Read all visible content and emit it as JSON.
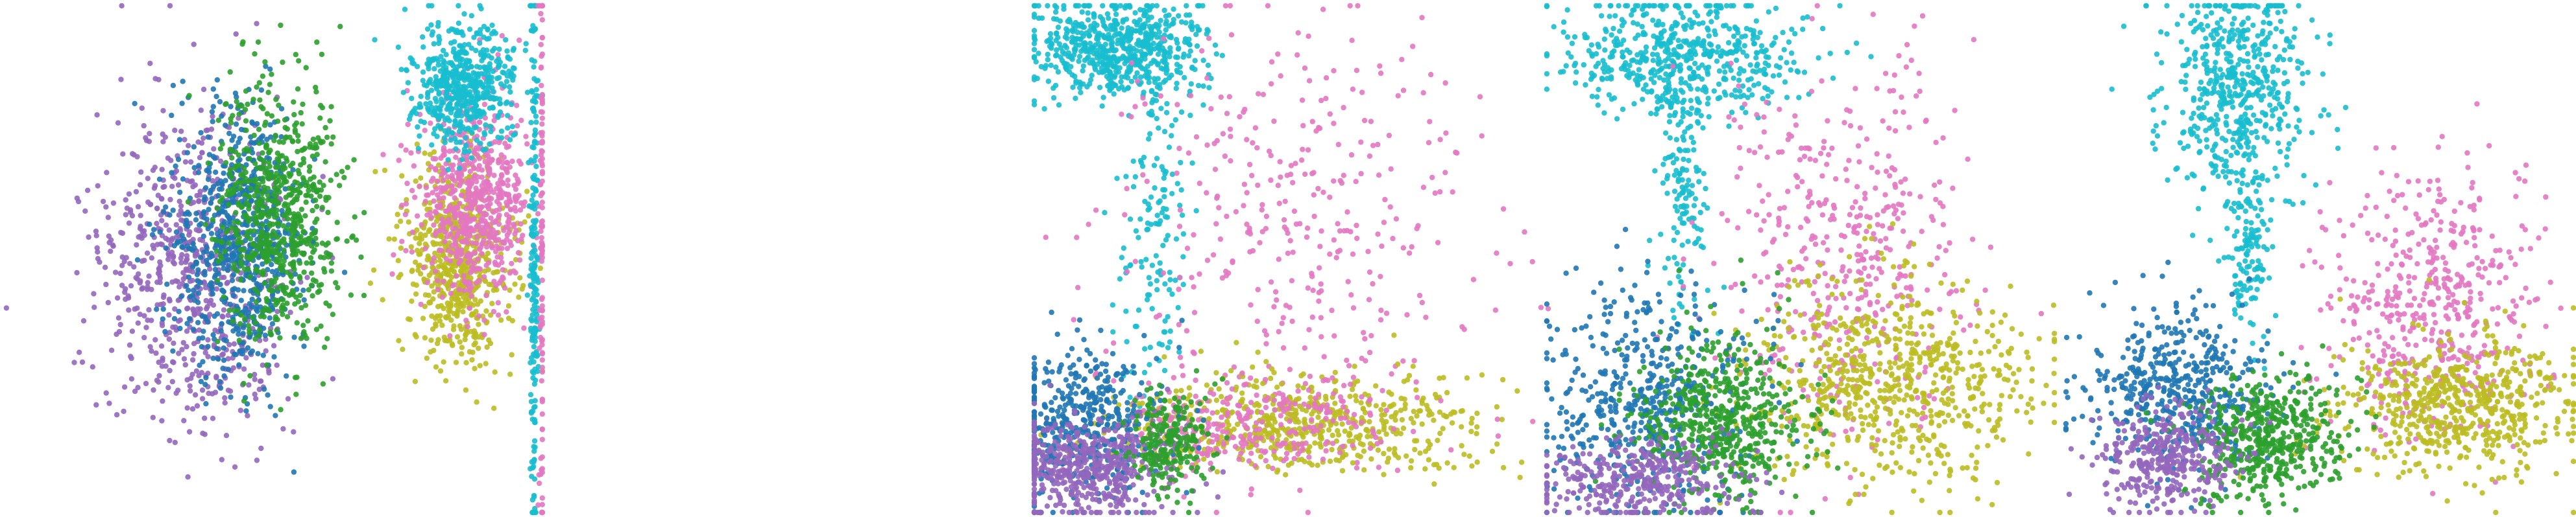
{
  "figure": {
    "palette": {
      "blue": "#1f77b4",
      "green": "#2ca02c",
      "purple": "#9467bd",
      "pink": "#e377c2",
      "olive": "#bcbd22",
      "cyan": "#17becf"
    }
  },
  "chart_data": [
    {
      "type": "scatter",
      "panel": "panel-1",
      "grid": false,
      "axes_visible": false,
      "legend": "none",
      "clusters": [
        {
          "color": "purple",
          "count": 700,
          "mean": [
            0.355,
            0.52
          ],
          "std": [
            0.085,
            0.16
          ]
        },
        {
          "color": "blue",
          "count": 700,
          "mean": [
            0.44,
            0.47
          ],
          "std": [
            0.06,
            0.13
          ]
        },
        {
          "color": "green",
          "count": 700,
          "mean": [
            0.51,
            0.42
          ],
          "std": [
            0.055,
            0.13
          ]
        },
        {
          "color": "olive",
          "count": 650,
          "mean": [
            0.84,
            0.5
          ],
          "std": [
            0.05,
            0.1
          ]
        },
        {
          "color": "pink",
          "count": 650,
          "mean": [
            0.87,
            0.38
          ],
          "std": [
            0.05,
            0.09
          ]
        },
        {
          "color": "cyan",
          "count": 550,
          "mean": [
            0.85,
            0.16
          ],
          "std": [
            0.045,
            0.06
          ]
        },
        {
          "color": "cyan",
          "count": 200,
          "mean": [
            0.98,
            0.5
          ],
          "std": [
            0.004,
            0.28
          ]
        },
        {
          "color": "pink",
          "count": 120,
          "mean": [
            0.995,
            0.5
          ],
          "std": [
            0.003,
            0.3
          ]
        }
      ]
    },
    {
      "type": "scatter",
      "panel": "panel-2",
      "grid": false,
      "axes_visible": false,
      "legend": "none",
      "clusters": [
        {
          "color": "cyan",
          "count": 650,
          "mean": [
            0.17,
            0.09
          ],
          "std": [
            0.08,
            0.05
          ]
        },
        {
          "color": "cyan",
          "count": 140,
          "mean": [
            0.24,
            0.45
          ],
          "std": [
            0.035,
            0.18
          ]
        },
        {
          "color": "pink",
          "count": 350,
          "mean": [
            0.5,
            0.45
          ],
          "std": [
            0.17,
            0.2
          ]
        },
        {
          "color": "olive",
          "count": 600,
          "mean": [
            0.52,
            0.82
          ],
          "std": [
            0.18,
            0.05
          ]
        },
        {
          "color": "pink",
          "count": 300,
          "mean": [
            0.42,
            0.82
          ],
          "std": [
            0.15,
            0.05
          ]
        },
        {
          "color": "blue",
          "count": 450,
          "mean": [
            0.1,
            0.82
          ],
          "std": [
            0.07,
            0.07
          ]
        },
        {
          "color": "purple",
          "count": 500,
          "mean": [
            0.11,
            0.91
          ],
          "std": [
            0.08,
            0.05
          ]
        },
        {
          "color": "green",
          "count": 220,
          "mean": [
            0.27,
            0.86
          ],
          "std": [
            0.04,
            0.05
          ]
        }
      ]
    },
    {
      "type": "scatter",
      "panel": "panel-3",
      "grid": false,
      "axes_visible": false,
      "legend": "none",
      "clusters": [
        {
          "color": "cyan",
          "count": 550,
          "mean": [
            0.27,
            0.1
          ],
          "std": [
            0.12,
            0.06
          ]
        },
        {
          "color": "cyan",
          "count": 150,
          "mean": [
            0.27,
            0.35
          ],
          "std": [
            0.025,
            0.12
          ]
        },
        {
          "color": "pink",
          "count": 450,
          "mean": [
            0.6,
            0.47
          ],
          "std": [
            0.12,
            0.18
          ]
        },
        {
          "color": "olive",
          "count": 700,
          "mean": [
            0.68,
            0.74
          ],
          "std": [
            0.14,
            0.1
          ]
        },
        {
          "color": "blue",
          "count": 500,
          "mean": [
            0.2,
            0.78
          ],
          "std": [
            0.1,
            0.11
          ]
        },
        {
          "color": "green",
          "count": 550,
          "mean": [
            0.35,
            0.82
          ],
          "std": [
            0.08,
            0.08
          ]
        },
        {
          "color": "purple",
          "count": 350,
          "mean": [
            0.18,
            0.93
          ],
          "std": [
            0.1,
            0.04
          ]
        }
      ]
    },
    {
      "type": "scatter",
      "panel": "panel-4",
      "grid": false,
      "axes_visible": false,
      "legend": "none",
      "clusters": [
        {
          "color": "cyan",
          "count": 550,
          "mean": [
            0.34,
            0.16
          ],
          "std": [
            0.07,
            0.11
          ]
        },
        {
          "color": "cyan",
          "count": 120,
          "mean": [
            0.36,
            0.5
          ],
          "std": [
            0.02,
            0.08
          ]
        },
        {
          "color": "pink",
          "count": 500,
          "mean": [
            0.73,
            0.6
          ],
          "std": [
            0.1,
            0.13
          ]
        },
        {
          "color": "olive",
          "count": 600,
          "mean": [
            0.76,
            0.78
          ],
          "std": [
            0.12,
            0.07
          ]
        },
        {
          "color": "blue",
          "count": 500,
          "mean": [
            0.23,
            0.75
          ],
          "std": [
            0.09,
            0.08
          ]
        },
        {
          "color": "green",
          "count": 500,
          "mean": [
            0.4,
            0.85
          ],
          "std": [
            0.08,
            0.06
          ]
        },
        {
          "color": "purple",
          "count": 350,
          "mean": [
            0.21,
            0.89
          ],
          "std": [
            0.07,
            0.05
          ]
        }
      ]
    }
  ]
}
